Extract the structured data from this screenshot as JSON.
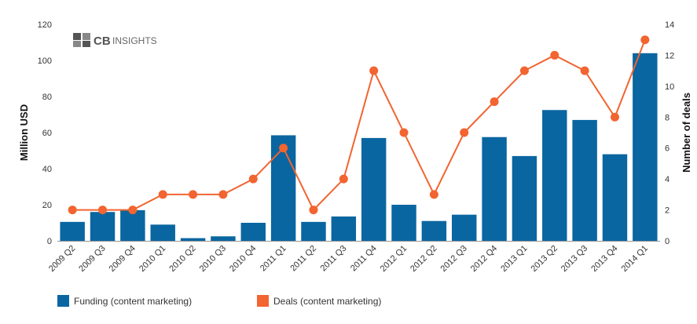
{
  "logo": {
    "mark": "CB",
    "word": "INSIGHTS",
    "icon": "cb-insights-logo-icon"
  },
  "colors": {
    "bar": "#0a66a0",
    "line": "#f26430",
    "grid": "#e6e6e6"
  },
  "chart_data": {
    "type": "bar",
    "categories": [
      "2009 Q2",
      "2009 Q3",
      "2009 Q4",
      "2010 Q1",
      "2010 Q2",
      "2010 Q3",
      "2010 Q4",
      "2011 Q1",
      "2011 Q2",
      "2011 Q3",
      "2011 Q4",
      "2012 Q1",
      "2012 Q2",
      "2012 Q3",
      "2012 Q4",
      "2013 Q1",
      "2013 Q2",
      "2013 Q3",
      "2013 Q4",
      "2014 Q1"
    ],
    "series": [
      {
        "name": "Funding (content marketing)",
        "type": "bar",
        "axis": "left",
        "values": [
          10.5,
          16,
          17,
          9,
          1.5,
          2.5,
          10,
          58.5,
          10.5,
          13.5,
          57,
          20,
          11,
          14.5,
          57.5,
          47,
          72.5,
          67,
          48,
          104
        ]
      },
      {
        "name": "Deals (content marketing)",
        "type": "line",
        "axis": "right",
        "values": [
          2,
          2,
          2,
          3,
          3,
          3,
          4,
          6,
          2,
          4,
          11,
          7,
          3,
          7,
          9,
          11,
          12,
          11,
          8,
          13
        ]
      }
    ],
    "ylabel": "Million USD",
    "y2label": "Number of deals",
    "ylim": [
      0,
      120
    ],
    "y2lim": [
      0,
      14
    ],
    "yticks": [
      "0",
      "20",
      "40",
      "60",
      "80",
      "100",
      "120"
    ],
    "y2ticks": [
      "0",
      "2",
      "4",
      "6",
      "8",
      "10",
      "12",
      "14"
    ],
    "grid": false,
    "legend": "bottom-left"
  }
}
